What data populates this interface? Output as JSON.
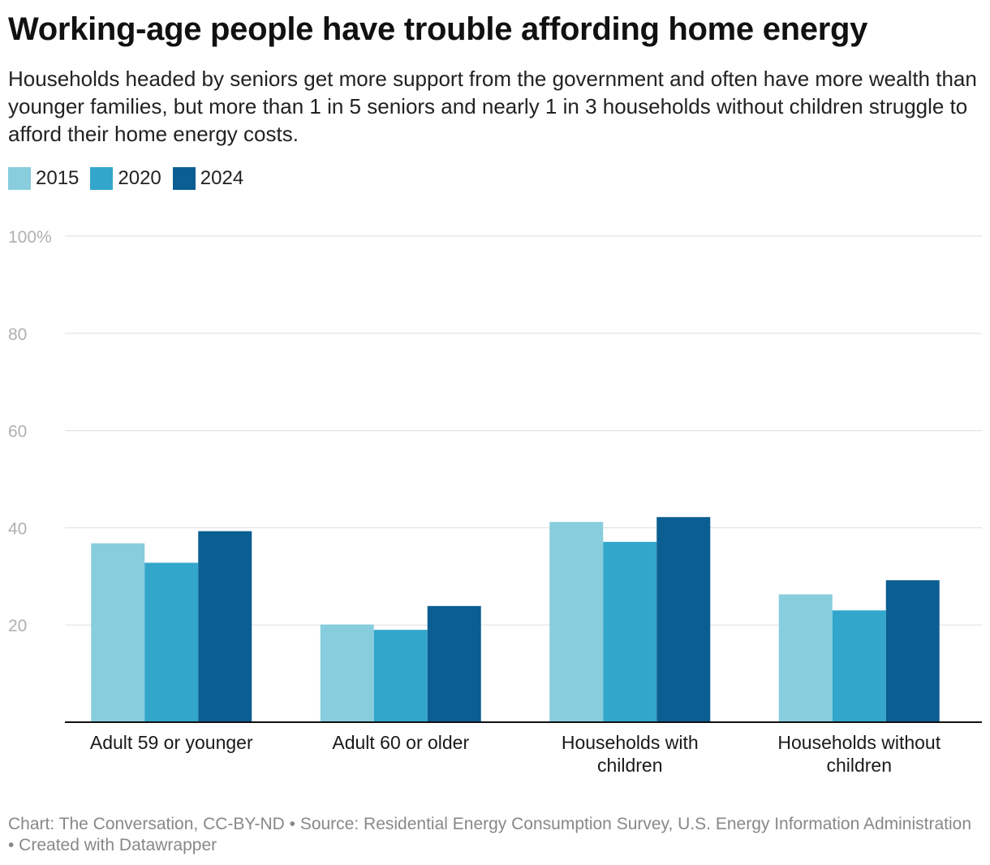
{
  "title": "Working-age people have trouble affording home energy",
  "subtitle": "Households headed by seniors get more support from the government and often have more wealth than younger families, but more than 1 in 5 seniors and nearly 1 in 3 households without children struggle to afford their home energy costs.",
  "footer": "Chart: The Conversation, CC-BY-ND • Source: Residential Energy Consumption Survey, U.S. Energy Information Administration • Created with Datawrapper",
  "colors": {
    "s2015": "#88cddd",
    "s2020": "#33a6cc",
    "s2024": "#0b5e91",
    "grid": "#e3e3e3",
    "axis": "#111111",
    "tick": "#b0b0b0"
  },
  "chart_data": {
    "type": "bar",
    "title": "Working-age people have trouble affording home energy",
    "xlabel": "",
    "ylabel": "",
    "ylim": [
      0,
      100
    ],
    "yticks": [
      20,
      40,
      60,
      80,
      100
    ],
    "ytick_labels": [
      "20",
      "40",
      "60",
      "80",
      "100%"
    ],
    "grid": true,
    "legend_position": "top-left",
    "categories": [
      [
        "Adult 59 or younger"
      ],
      [
        "Adult 60 or older"
      ],
      [
        "Households with",
        "children"
      ],
      [
        "Households without",
        "children"
      ]
    ],
    "series": [
      {
        "name": "2015",
        "color": "#88cddd",
        "values": [
          36.8,
          20.1,
          41.2,
          26.3
        ]
      },
      {
        "name": "2020",
        "color": "#33a6cc",
        "values": [
          32.8,
          19.0,
          37.1,
          23.0
        ]
      },
      {
        "name": "2024",
        "color": "#0b5e91",
        "values": [
          39.3,
          23.9,
          42.2,
          29.2
        ]
      }
    ]
  }
}
